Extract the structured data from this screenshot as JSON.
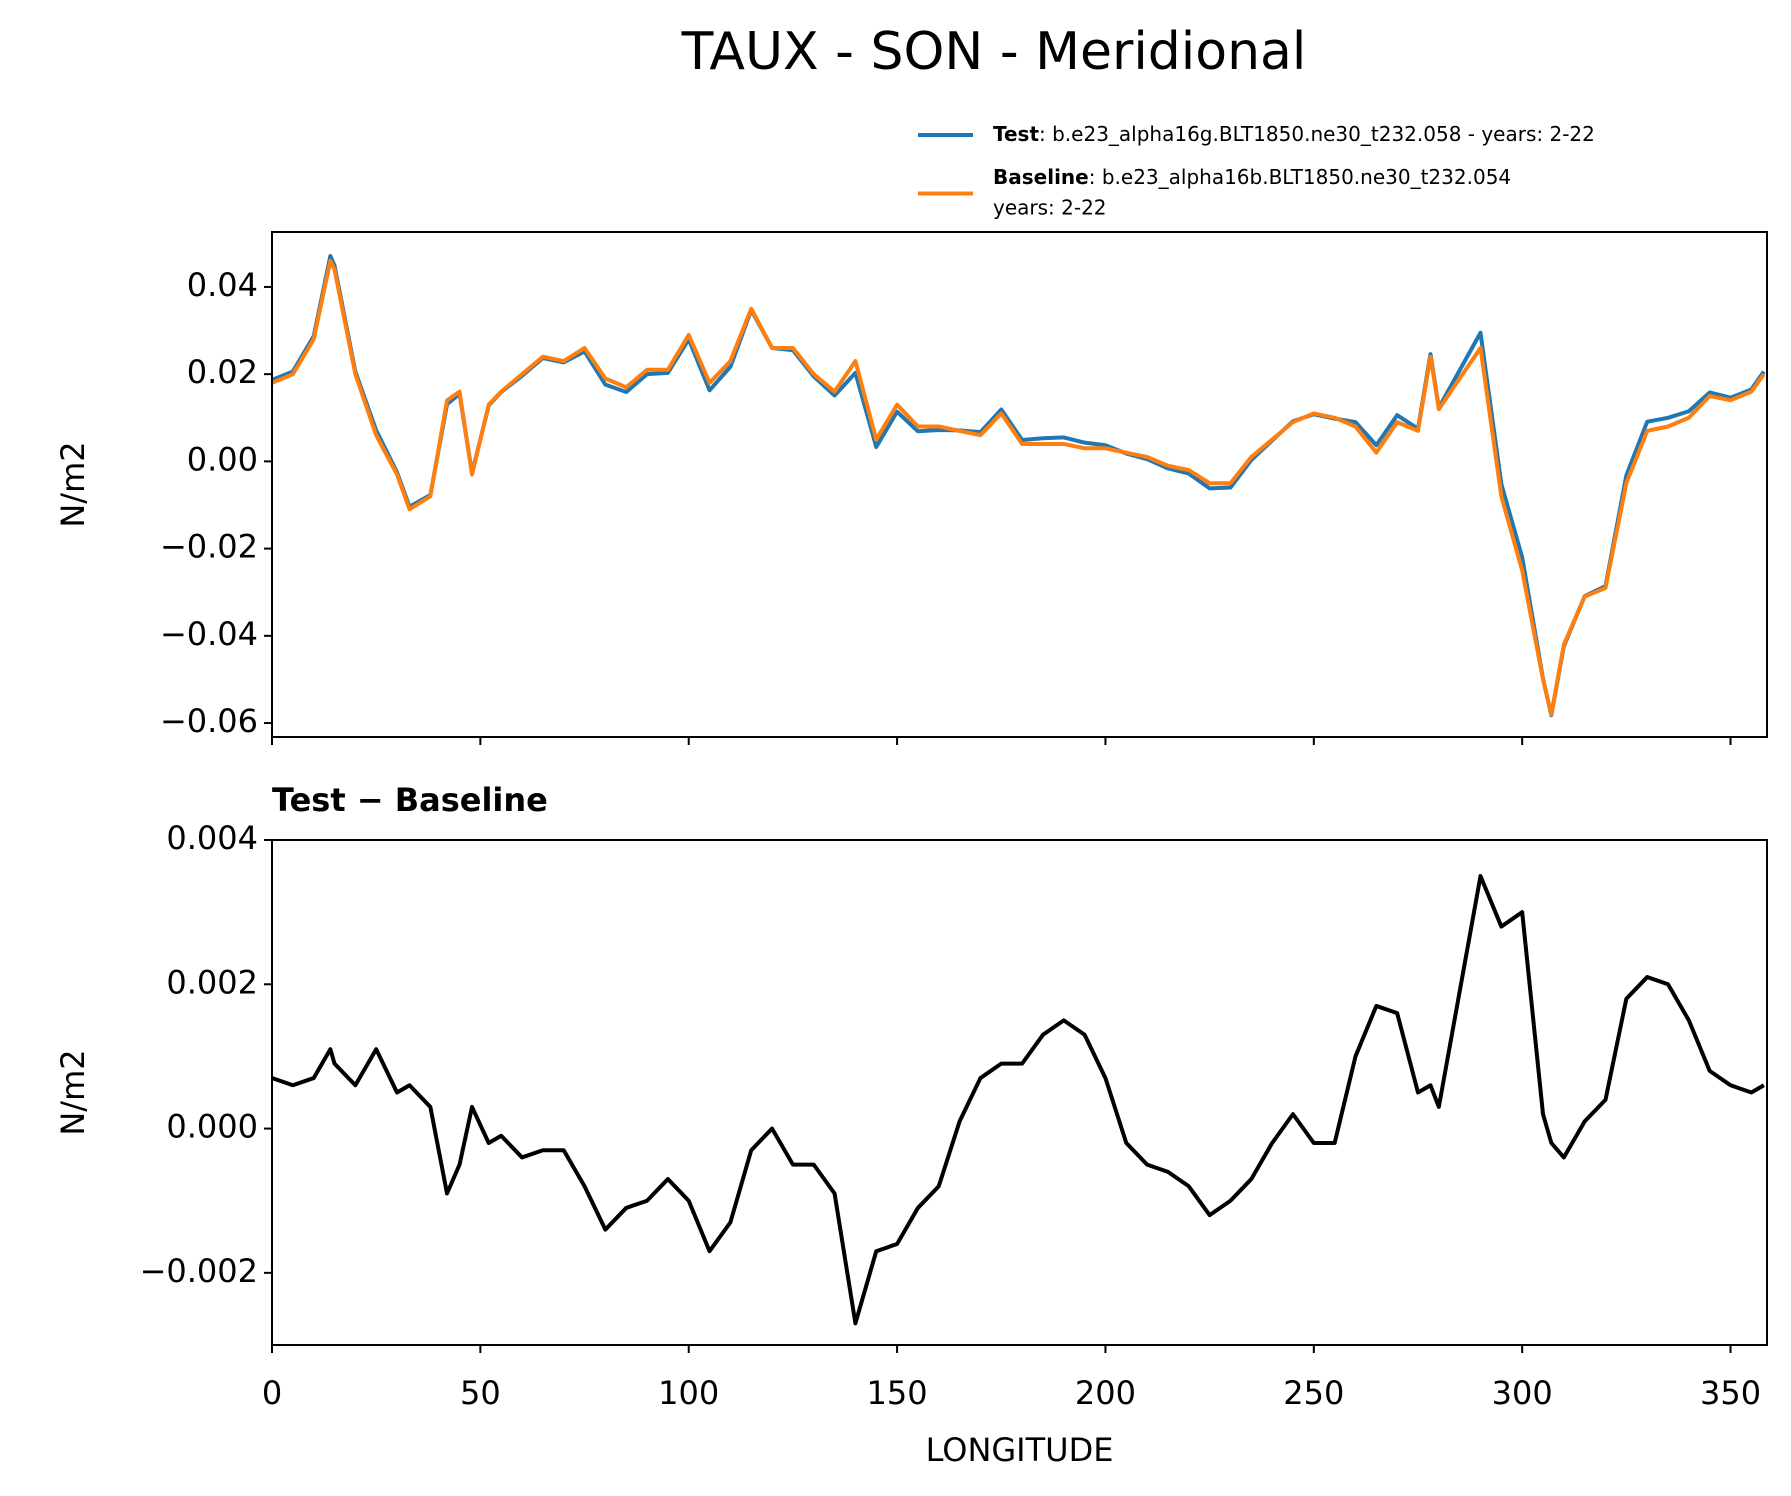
{
  "title": "TAUX - SON - Meridional",
  "chart_data": [
    {
      "type": "line",
      "ylabel": "N/m2",
      "x": [
        0,
        5,
        10,
        14,
        15,
        20,
        25,
        30,
        33,
        38,
        42,
        45,
        48,
        52,
        55,
        60,
        65,
        70,
        75,
        80,
        85,
        90,
        95,
        100,
        105,
        110,
        115,
        120,
        125,
        130,
        135,
        140,
        145,
        150,
        155,
        160,
        165,
        170,
        175,
        180,
        185,
        190,
        195,
        200,
        205,
        210,
        215,
        220,
        225,
        230,
        235,
        240,
        245,
        250,
        255,
        260,
        265,
        270,
        275,
        278,
        280,
        285,
        290,
        295,
        300,
        305,
        307,
        310,
        315,
        320,
        325,
        330,
        335,
        340,
        345,
        350,
        355,
        358
      ],
      "series": [
        {
          "name": "Test",
          "description": [
            ": b.e23_alpha16g.BLT1850.ne30_t232.058 - years: 2-22"
          ],
          "color": "#1f77b4",
          "values": [
            0.0187,
            0.0206,
            0.0287,
            0.0471,
            0.0449,
            0.0206,
            0.0071,
            -0.0025,
            -0.0104,
            -0.0077,
            0.0131,
            0.0155,
            -0.0027,
            0.0128,
            0.0159,
            0.0196,
            0.0237,
            0.0227,
            0.0252,
            0.0176,
            0.0159,
            0.02,
            0.0203,
            0.028,
            0.0163,
            0.0217,
            0.0347,
            0.026,
            0.0255,
            0.0195,
            0.0151,
            0.0203,
            0.0033,
            0.0114,
            0.0069,
            0.0072,
            0.0071,
            0.0067,
            0.0119,
            0.0049,
            0.0053,
            0.0055,
            0.0043,
            0.0037,
            0.0018,
            0.0005,
            -0.0016,
            -0.0028,
            -0.0062,
            -0.006,
            0.0003,
            0.0048,
            0.0092,
            0.0108,
            0.0098,
            0.009,
            0.0037,
            0.0106,
            0.0075,
            0.0246,
            0.0123,
            0.0209,
            0.0295,
            -0.0052,
            -0.022,
            -0.0498,
            -0.0582,
            -0.0424,
            -0.0309,
            -0.0286,
            -0.0032,
            0.0091,
            0.01,
            0.0115,
            0.0158,
            0.0146,
            0.0165,
            0.0206
          ]
        },
        {
          "name": "Baseline",
          "description": [
            ": b.e23_alpha16b.BLT1850.ne30_t232.054",
            "years: 2-22"
          ],
          "color": "#ff7f0e",
          "values": [
            0.018,
            0.02,
            0.028,
            0.046,
            0.044,
            0.02,
            0.006,
            -0.003,
            -0.011,
            -0.008,
            0.014,
            0.016,
            -0.003,
            0.013,
            0.016,
            0.02,
            0.024,
            0.023,
            0.026,
            0.019,
            0.017,
            0.021,
            0.021,
            0.029,
            0.018,
            0.023,
            0.035,
            0.026,
            0.026,
            0.02,
            0.016,
            0.023,
            0.005,
            0.013,
            0.008,
            0.008,
            0.007,
            0.006,
            0.011,
            0.004,
            0.004,
            0.004,
            0.003,
            0.003,
            0.002,
            0.001,
            -0.001,
            -0.002,
            -0.005,
            -0.005,
            0.001,
            0.005,
            0.009,
            0.011,
            0.01,
            0.008,
            0.002,
            0.009,
            0.007,
            0.024,
            0.012,
            0.019,
            0.026,
            -0.008,
            -0.025,
            -0.05,
            -0.058,
            -0.042,
            -0.031,
            -0.029,
            -0.005,
            0.007,
            0.008,
            0.01,
            0.015,
            0.014,
            0.016,
            0.02
          ]
        }
      ],
      "xlim": [
        0,
        358.75
      ],
      "xticks": [
        0,
        50,
        100,
        150,
        200,
        250,
        300,
        350
      ],
      "show_xtick_labels": false,
      "ylim": [
        -0.0632,
        0.0526
      ],
      "yticks": [
        {
          "value": -0.06,
          "label": "−0.06"
        },
        {
          "value": -0.04,
          "label": "−0.04"
        },
        {
          "value": -0.02,
          "label": "−0.02"
        },
        {
          "value": 0,
          "label": "0.00"
        },
        0.02,
        0.04
      ],
      "legend": "upper right"
    },
    {
      "type": "line",
      "title": "Test − Baseline",
      "ylabel": "N/m2",
      "xlabel": "LONGITUDE",
      "x": [
        0,
        5,
        10,
        14,
        15,
        20,
        25,
        30,
        33,
        38,
        42,
        45,
        48,
        52,
        55,
        60,
        65,
        70,
        75,
        80,
        85,
        90,
        95,
        100,
        105,
        110,
        115,
        120,
        125,
        130,
        135,
        140,
        145,
        150,
        155,
        160,
        165,
        170,
        175,
        180,
        185,
        190,
        195,
        200,
        205,
        210,
        215,
        220,
        225,
        230,
        235,
        240,
        245,
        250,
        255,
        260,
        265,
        270,
        275,
        278,
        280,
        285,
        290,
        295,
        300,
        305,
        307,
        310,
        315,
        320,
        325,
        330,
        335,
        340,
        345,
        350,
        355,
        358
      ],
      "series": [
        {
          "color": "#000000",
          "values": [
            0.0007,
            0.0006,
            0.0007,
            0.0011,
            0.0009,
            0.0006,
            0.0011,
            0.0005,
            0.0006,
            0.0003,
            -0.0009,
            -0.0005,
            0.0003,
            -0.0002,
            -0.0001,
            -0.0004,
            -0.0003,
            -0.0003,
            -0.0008,
            -0.0014,
            -0.0011,
            -0.001,
            -0.0007,
            -0.001,
            -0.0017,
            -0.0013,
            -0.0003,
            0.0,
            -0.0005,
            -0.0005,
            -0.0009,
            -0.0027,
            -0.0017,
            -0.0016,
            -0.0011,
            -0.0008,
            0.0001,
            0.0007,
            0.0009,
            0.0009,
            0.0013,
            0.0015,
            0.0013,
            0.0007,
            -0.0002,
            -0.0005,
            -0.0006,
            -0.0008,
            -0.0012,
            -0.001,
            -0.0007,
            -0.0002,
            0.0002,
            -0.0002,
            -0.0002,
            0.001,
            0.0017,
            0.0016,
            0.0005,
            0.0006,
            0.0003,
            0.0019,
            0.0035,
            0.0028,
            0.003,
            0.0002,
            -0.0002,
            -0.0004,
            0.0001,
            0.0004,
            0.0018,
            0.0021,
            0.002,
            0.0015,
            0.0008,
            0.0006,
            0.0005,
            0.0006
          ]
        }
      ],
      "xlim": [
        0,
        358.75
      ],
      "xticks": [
        0,
        50,
        100,
        150,
        200,
        250,
        300,
        350
      ],
      "show_xtick_labels": true,
      "ylim": [
        -0.003,
        0.004
      ],
      "yticks": [
        {
          "value": -0.002,
          "label": "−0.002"
        },
        {
          "value": 0,
          "label": "0.000"
        },
        0.002,
        0.004
      ]
    }
  ]
}
